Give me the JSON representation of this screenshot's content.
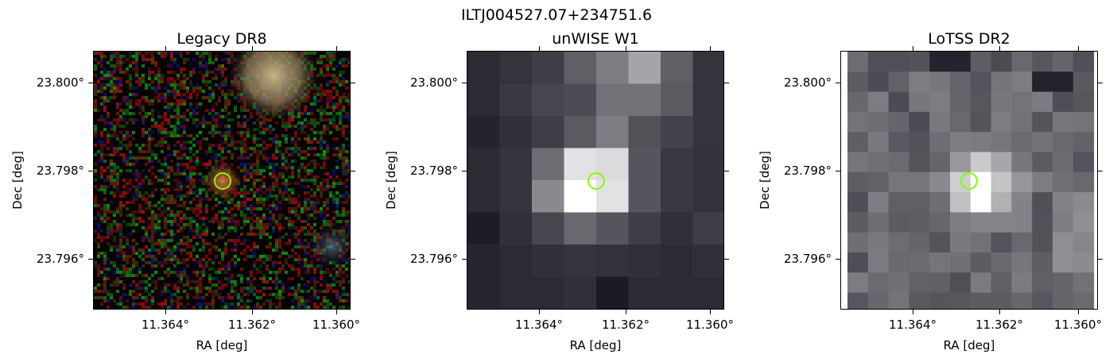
{
  "figure": {
    "title": "ILTJ004527.07+234751.6"
  },
  "panels": [
    {
      "id": "legacy",
      "title": "Legacy DR8",
      "xlabel": "RA [deg]",
      "ylabel": "Dec [deg]",
      "xticks": [
        "11.364°",
        "11.362°",
        "11.360°"
      ],
      "yticks": [
        "23.800°",
        "23.798°",
        "23.796°"
      ],
      "marker_color": "#7fff00"
    },
    {
      "id": "unwise",
      "title": "unWISE W1",
      "xlabel": "RA [deg]",
      "ylabel": "Dec [deg]",
      "xticks": [
        "11.364°",
        "11.362°",
        "11.360°"
      ],
      "yticks": [
        "23.800°",
        "23.798°",
        "23.796°"
      ],
      "marker_color": "#7fff00"
    },
    {
      "id": "lotss",
      "title": "LoTSS DR2",
      "xlabel": "RA [deg]",
      "ylabel": "Dec [deg]",
      "xticks": [
        "11.364°",
        "11.362°",
        "11.360°"
      ],
      "yticks": [
        "23.800°",
        "23.798°",
        "23.796°"
      ],
      "marker_color": "#7fff00"
    }
  ]
}
